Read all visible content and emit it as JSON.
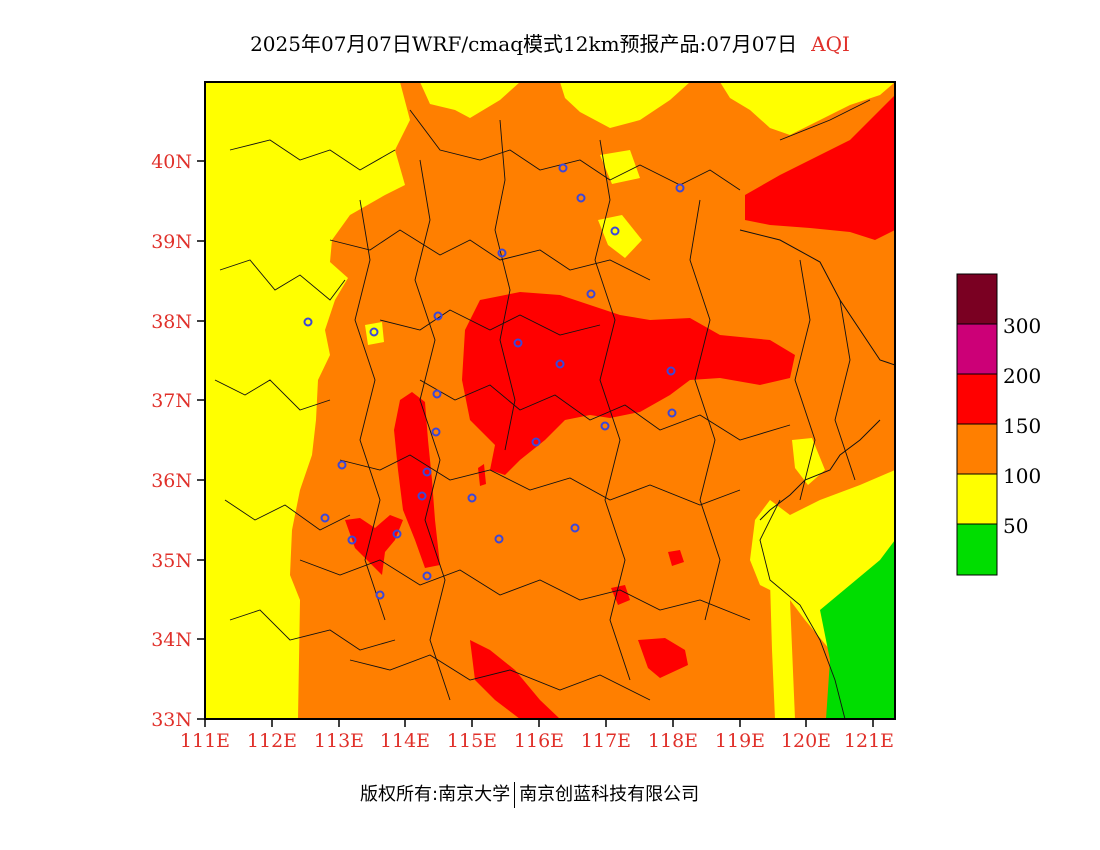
{
  "title": {
    "main": "2025年07月07日WRF/cmaq模式12km预报产品:07月07日",
    "variable": "AQI"
  },
  "colors": {
    "good": "#00dd00",
    "moderate": "#ffff00",
    "sensitive": "#ff7f00",
    "unhealthy": "#ff0000",
    "very_unhealthy": "#cc0077",
    "hazardous": "#7a0022",
    "tick_label": "#e0302a",
    "city_marker": "#3b47d9"
  },
  "axes": {
    "lat_labels": [
      "40N",
      "39N",
      "38N",
      "37N",
      "36N",
      "35N",
      "34N",
      "33N"
    ],
    "lon_labels": [
      "111E",
      "112E",
      "113E",
      "114E",
      "115E",
      "116E",
      "117E",
      "118E",
      "119E",
      "120E",
      "121E"
    ]
  },
  "legend": {
    "labels": [
      "300",
      "200",
      "150",
      "100",
      "50"
    ]
  },
  "footer": {
    "left": "版权所有:南京大学",
    "right": "南京创蓝科技有限公司"
  }
}
